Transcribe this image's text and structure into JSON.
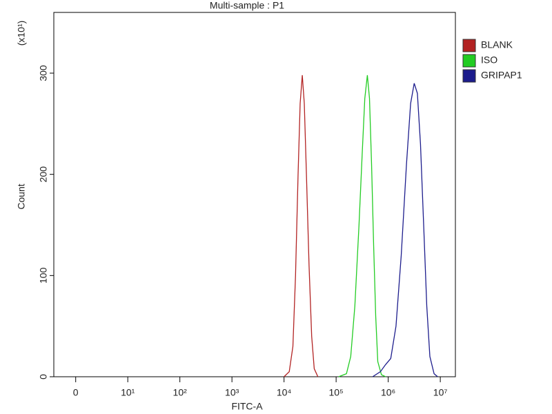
{
  "chart_data": {
    "type": "line",
    "title": "Multi-sample : P1",
    "x_label": "FITC-A",
    "y_label": "Count",
    "y_multiplier": "(x10¹)",
    "xscale": "symlog",
    "xlim": [
      -4.2,
      19500000
    ],
    "xticks": [
      0,
      {
        "value": 10,
        "label": "10¹"
      },
      {
        "value": 100,
        "label": "10²"
      },
      {
        "value": 1000,
        "label": "10³"
      },
      {
        "value": 10000,
        "label": "10⁴"
      },
      {
        "value": 100000,
        "label": "10⁵"
      },
      {
        "value": 1000000,
        "label": "10⁶"
      },
      {
        "value": 10000000,
        "label": "10⁷"
      }
    ],
    "ylim": [
      0,
      360
    ],
    "yticks": [
      0,
      100,
      200,
      300
    ],
    "legend": "outside-right",
    "series": [
      {
        "name": "BLANK",
        "color": "#b22222",
        "x": [
          10000,
          12600,
          14800,
          16600,
          18600,
          20400,
          22400,
          24500,
          26900,
          30200,
          33900,
          38000,
          44700
        ],
        "values": [
          0,
          5,
          30,
          100,
          200,
          270,
          298,
          270,
          200,
          110,
          40,
          8,
          0
        ]
      },
      {
        "name": "ISO",
        "color": "#22cc22",
        "x": [
          112000,
          158000,
          191000,
          229000,
          275000,
          316000,
          355000,
          398000,
          437000,
          479000,
          525000,
          575000,
          631000,
          741000,
          891000
        ],
        "values": [
          0,
          3,
          20,
          70,
          150,
          220,
          275,
          298,
          275,
          210,
          130,
          60,
          15,
          2,
          0
        ]
      },
      {
        "name": "GRIPAP1",
        "color": "#1c1c8c",
        "x": [
          501000,
          708000,
          891000,
          1120000,
          1410000,
          1780000,
          2240000,
          2690000,
          3160000,
          3630000,
          4170000,
          4790000,
          5500000,
          6310000,
          7590000,
          8910000
        ],
        "values": [
          0,
          5,
          12,
          18,
          50,
          120,
          210,
          270,
          290,
          280,
          230,
          150,
          70,
          20,
          3,
          0
        ]
      }
    ]
  }
}
